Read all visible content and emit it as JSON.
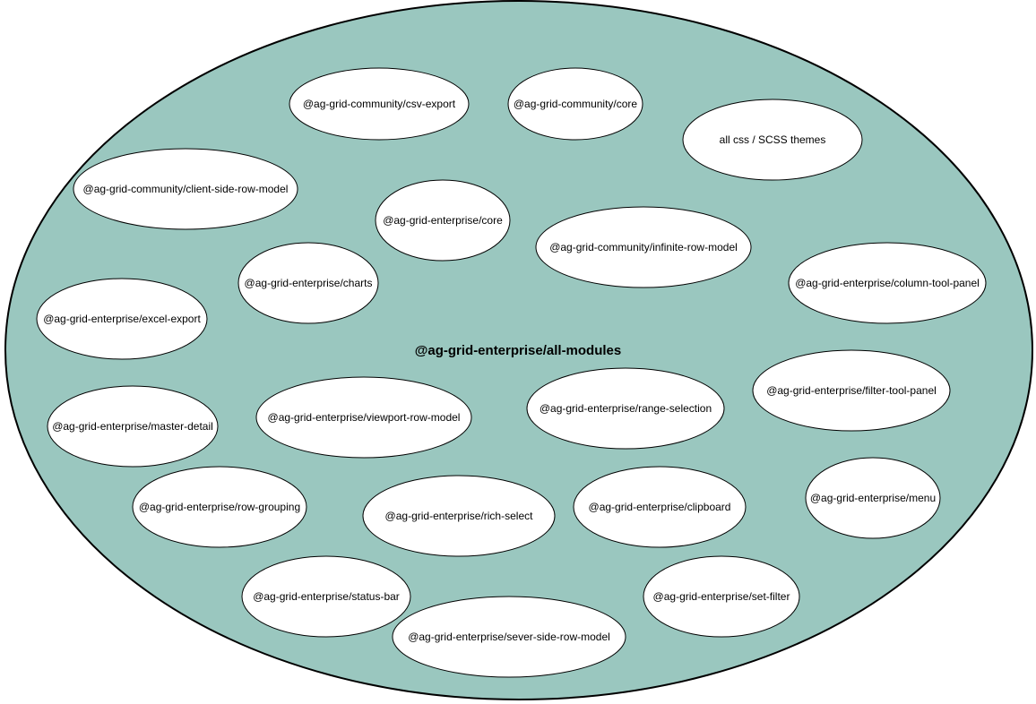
{
  "colors": {
    "container_fill": "#9ac7bf",
    "container_stroke": "#000000",
    "node_fill": "#ffffff",
    "node_stroke": "#000000"
  },
  "container": {
    "label": "@ag-grid-enterprise/all-modules"
  },
  "modules": [
    {
      "label": "@ag-grid-community/csv-export"
    },
    {
      "label": "@ag-grid-community/core"
    },
    {
      "label": "all css / SCSS themes"
    },
    {
      "label": "@ag-grid-community/client-side-row-model"
    },
    {
      "label": "@ag-grid-enterprise/core"
    },
    {
      "label": "@ag-grid-community/infinite-row-model"
    },
    {
      "label": "@ag-grid-enterprise/charts"
    },
    {
      "label": "@ag-grid-enterprise/column-tool-panel"
    },
    {
      "label": "@ag-grid-enterprise/excel-export"
    },
    {
      "label": "@ag-grid-enterprise/filter-tool-panel"
    },
    {
      "label": "@ag-grid-enterprise/master-detail"
    },
    {
      "label": "@ag-grid-enterprise/viewport-row-model"
    },
    {
      "label": "@ag-grid-enterprise/range-selection"
    },
    {
      "label": "@ag-grid-enterprise/row-grouping"
    },
    {
      "label": "@ag-grid-enterprise/rich-select"
    },
    {
      "label": "@ag-grid-enterprise/clipboard"
    },
    {
      "label": "@ag-grid-enterprise/menu"
    },
    {
      "label": "@ag-grid-enterprise/status-bar"
    },
    {
      "label": "@ag-grid-enterprise/set-filter"
    },
    {
      "label": "@ag-grid-enterprise/sever-side-row-model"
    }
  ]
}
